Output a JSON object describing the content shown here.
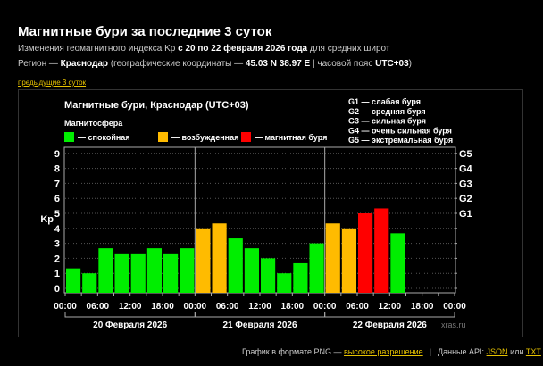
{
  "header": {
    "title": "Магнитные бури за последние 3 суток",
    "line1_pre": "Изменения геомагнитного индекса Kp ",
    "line1_bold": "с 20 по 22 февраля 2026 года",
    "line1_post": " для средних широт",
    "line2_a": "Регион — ",
    "line2_city": "Краснодар",
    "line2_b": " (географические координаты — ",
    "line2_coords": "45.03 N 38.97 E",
    "line2_c": " | часовой пояс ",
    "line2_tz": "UTC+03",
    "line2_d": ")",
    "prev_link": "предыдущие 3 суток"
  },
  "chart_data": {
    "type": "bar",
    "title": "Магнитные бури, Краснодар (UTC+03)",
    "legend_title": "Магнитосфера",
    "legend": [
      {
        "label": "— спокойная",
        "color": "#00ee00"
      },
      {
        "label": "— возбужденная",
        "color": "#ffbb00"
      },
      {
        "label": "— магнитная буря",
        "color": "#ff0000"
      }
    ],
    "g_scale": [
      "G1 — слабая буря",
      "G2 — средняя буря",
      "G3 — сильная буря",
      "G4 — очень сильная буря",
      "G5 — экстремальная буря"
    ],
    "ylabel": "Kp",
    "ylim": [
      0,
      9
    ],
    "yticks": [
      "0",
      "1",
      "2",
      "3",
      "4",
      "5",
      "6",
      "7",
      "8",
      "9"
    ],
    "right_ticks": [
      "G1",
      "G2",
      "G3",
      "G4",
      "G5"
    ],
    "xticks": [
      "00:00",
      "06:00",
      "12:00",
      "18:00",
      "00:00",
      "06:00",
      "12:00",
      "18:00",
      "00:00",
      "06:00",
      "12:00",
      "18:00",
      "00:00"
    ],
    "days": [
      "20 Февраля 2026",
      "21 Февраля 2026",
      "22 Февраля 2026"
    ],
    "interval_hours": 3,
    "values": [
      1.33,
      1,
      2.67,
      2.33,
      2.33,
      2.67,
      2.33,
      2.67,
      4,
      4.33,
      3.33,
      2.67,
      2,
      1,
      1.67,
      3,
      4.33,
      4,
      5,
      5.33,
      3.67
    ],
    "levels": [
      "quiet",
      "quiet",
      "quiet",
      "quiet",
      "quiet",
      "quiet",
      "quiet",
      "quiet",
      "active",
      "active",
      "quiet",
      "quiet",
      "quiet",
      "quiet",
      "quiet",
      "quiet",
      "active",
      "active",
      "storm",
      "storm",
      "quiet"
    ],
    "grid": true,
    "watermark": "xras.ru"
  },
  "footer": {
    "png_text": "График в формате PNG — ",
    "png_link": "высокое разрешение",
    "sep": "|",
    "api_text": "Данные API: ",
    "json_link": "JSON",
    "or": " или ",
    "txt_link": "TXT"
  }
}
